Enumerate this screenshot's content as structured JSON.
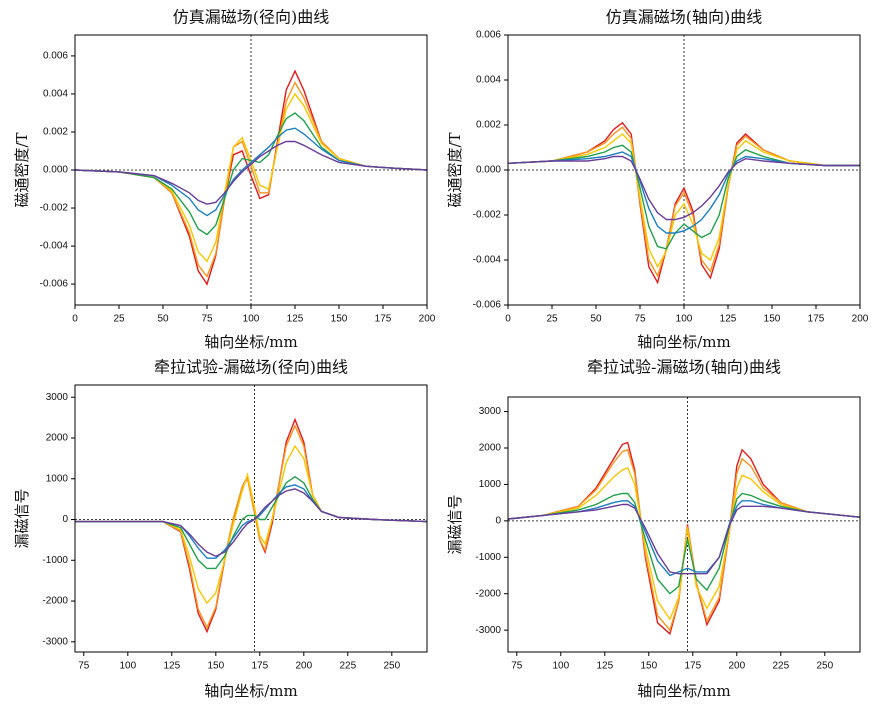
{
  "chart_data": [
    {
      "type": "line",
      "title": "仿真漏磁场(径向)曲线",
      "xlabel": "轴向坐标/mm",
      "ylabel": "磁通密度/T",
      "xlim": [
        0,
        200
      ],
      "xticks": [
        0,
        25,
        50,
        75,
        100,
        125,
        150,
        175,
        200
      ],
      "ylim": [
        -0.0071,
        0.0071
      ],
      "yticks": [
        -0.006,
        -0.004,
        -0.002,
        {
          "value": 0,
          "label": "0.000"
        },
        0.002,
        0.004,
        0.006
      ],
      "vline": 100,
      "hline": 0,
      "x": [
        0,
        25,
        45,
        55,
        65,
        70,
        75,
        80,
        85,
        90,
        95,
        100,
        105,
        110,
        115,
        120,
        125,
        130,
        140,
        150,
        165,
        180,
        200
      ],
      "series": [
        {
          "color": "#e31a1c",
          "values": [
            0,
            -0.0001,
            -0.0004,
            -0.0012,
            -0.0035,
            -0.0053,
            -0.006,
            -0.0045,
            -0.0015,
            0.0008,
            0.001,
            -0.0003,
            -0.0015,
            -0.0013,
            0.0015,
            0.0042,
            0.0052,
            0.0042,
            0.0015,
            0.0006,
            0.0002,
            0.0001,
            0
          ]
        },
        {
          "color": "#f7941d",
          "values": [
            0,
            -0.0001,
            -0.0004,
            -0.0012,
            -0.0033,
            -0.005,
            -0.0056,
            -0.0044,
            -0.0015,
            0.0012,
            0.0015,
            0.0002,
            -0.0012,
            -0.0012,
            0.0013,
            0.0036,
            0.0046,
            0.0038,
            0.0015,
            0.0006,
            0.0002,
            0.0001,
            0
          ]
        },
        {
          "color": "#f6c700",
          "values": [
            0,
            -0.0001,
            -0.0004,
            -0.0011,
            -0.0029,
            -0.0043,
            -0.0048,
            -0.0038,
            -0.0012,
            0.0012,
            0.0017,
            0.0005,
            -0.0008,
            -0.001,
            0.0012,
            0.0032,
            0.004,
            0.0034,
            0.0014,
            0.0006,
            0.0002,
            0.0001,
            0
          ]
        },
        {
          "color": "#22a04b",
          "values": [
            0,
            -0.0001,
            -0.0004,
            -0.001,
            -0.0022,
            -0.0031,
            -0.0034,
            -0.0029,
            -0.0015,
            0,
            0.0006,
            0.0005,
            0.0004,
            0.0008,
            0.0018,
            0.0027,
            0.003,
            0.0026,
            0.0012,
            0.0005,
            0.0002,
            0.0001,
            0
          ]
        },
        {
          "color": "#1c7fc0",
          "values": [
            0,
            -0.0001,
            -0.0003,
            -0.0008,
            -0.0015,
            -0.0021,
            -0.0024,
            -0.0021,
            -0.0013,
            -0.0005,
            0,
            0.0004,
            0.0008,
            0.0012,
            0.0017,
            0.0021,
            0.0022,
            0.0019,
            0.0011,
            0.0005,
            0.0002,
            0.0001,
            0
          ]
        },
        {
          "color": "#6a3d9a",
          "values": [
            0,
            -0.0001,
            -0.0003,
            -0.0007,
            -0.0012,
            -0.0016,
            -0.0018,
            -0.0017,
            -0.0012,
            -0.0006,
            -0.0001,
            0.0003,
            0.0007,
            0.001,
            0.0013,
            0.0015,
            0.0015,
            0.0013,
            0.0008,
            0.0004,
            0.0002,
            0.0001,
            0
          ]
        }
      ]
    },
    {
      "type": "line",
      "title": "仿真漏磁场(轴向)曲线",
      "xlabel": "轴向坐标/mm",
      "ylabel": "磁通密度/T",
      "xlim": [
        0,
        200
      ],
      "xticks": [
        0,
        25,
        50,
        75,
        100,
        125,
        150,
        175,
        200
      ],
      "ylim": [
        -0.006,
        0.006
      ],
      "yticks": [
        -0.006,
        -0.004,
        -0.002,
        {
          "value": 0,
          "label": "0.000"
        },
        0.002,
        0.004,
        0.006
      ],
      "vline": 100,
      "hline": 0,
      "x": [
        0,
        25,
        45,
        55,
        60,
        65,
        70,
        75,
        80,
        85,
        90,
        95,
        100,
        105,
        110,
        115,
        120,
        125,
        130,
        135,
        145,
        160,
        180,
        200
      ],
      "series": [
        {
          "color": "#e31a1c",
          "values": [
            0.0003,
            0.0004,
            0.0008,
            0.0013,
            0.0018,
            0.0021,
            0.0016,
            -0.0015,
            -0.0043,
            -0.005,
            -0.0035,
            -0.0015,
            -0.0008,
            -0.0018,
            -0.0042,
            -0.0048,
            -0.0035,
            -0.0008,
            0.0012,
            0.0016,
            0.0009,
            0.0004,
            0.0002,
            0.0002
          ]
        },
        {
          "color": "#f7941d",
          "values": [
            0.0003,
            0.0004,
            0.0008,
            0.0012,
            0.0016,
            0.0019,
            0.0014,
            -0.0014,
            -0.004,
            -0.0047,
            -0.0035,
            -0.0016,
            -0.001,
            -0.002,
            -0.004,
            -0.0045,
            -0.0033,
            -0.0008,
            0.0011,
            0.0015,
            0.0009,
            0.0004,
            0.0002,
            0.0002
          ]
        },
        {
          "color": "#f6c700",
          "values": [
            0.0003,
            0.0004,
            0.0007,
            0.001,
            0.0013,
            0.0016,
            0.0012,
            -0.0012,
            -0.0035,
            -0.0043,
            -0.0036,
            -0.002,
            -0.0015,
            -0.0024,
            -0.0037,
            -0.004,
            -0.003,
            -0.0007,
            0.0009,
            0.0013,
            0.0008,
            0.0004,
            0.0002,
            0.0002
          ]
        },
        {
          "color": "#22a04b",
          "values": [
            0.0003,
            0.0004,
            0.0006,
            0.0008,
            0.001,
            0.0011,
            0.0008,
            -0.0008,
            -0.0025,
            -0.0034,
            -0.0035,
            -0.0028,
            -0.0024,
            -0.0027,
            -0.003,
            -0.0028,
            -0.002,
            -0.0004,
            0.0006,
            0.0009,
            0.0006,
            0.0003,
            0.0002,
            0.0002
          ]
        },
        {
          "color": "#1c7fc0",
          "values": [
            0.0003,
            0.0004,
            0.0005,
            0.0006,
            0.0007,
            0.0008,
            0.0006,
            -0.0005,
            -0.0017,
            -0.0025,
            -0.0028,
            -0.0028,
            -0.0027,
            -0.0025,
            -0.0022,
            -0.0017,
            -0.0011,
            -0.0002,
            0.0004,
            0.0006,
            0.0005,
            0.0003,
            0.0002,
            0.0002
          ]
        },
        {
          "color": "#6a3d9a",
          "values": [
            0.0003,
            0.0004,
            0.0004,
            0.0005,
            0.0006,
            0.0006,
            0.0004,
            -0.0004,
            -0.0013,
            -0.0019,
            -0.0022,
            -0.0022,
            -0.0021,
            -0.0019,
            -0.0016,
            -0.0012,
            -0.0007,
            -0.0001,
            0.0003,
            0.0005,
            0.0004,
            0.0003,
            0.0002,
            0.0002
          ]
        }
      ]
    },
    {
      "type": "line",
      "title": "牵拉试验-漏磁场(径向)曲线",
      "xlabel": "轴向坐标/mm",
      "ylabel": "漏磁信号",
      "xlim": [
        70,
        270
      ],
      "xticks": [
        75,
        100,
        125,
        150,
        175,
        200,
        225,
        250
      ],
      "ylim": [
        -3250,
        3300
      ],
      "yticks": [
        -3000,
        -2000,
        -1000,
        0,
        1000,
        2000,
        3000
      ],
      "vline": 172,
      "hline": 0,
      "x": [
        70,
        100,
        120,
        130,
        135,
        140,
        145,
        150,
        155,
        160,
        165,
        168,
        172,
        175,
        178,
        182,
        186,
        190,
        195,
        200,
        205,
        210,
        220,
        240,
        270
      ],
      "series": [
        {
          "color": "#e31a1c",
          "values": [
            -50,
            -50,
            -50,
            -300,
            -1200,
            -2300,
            -2750,
            -2200,
            -1000,
            0,
            800,
            1050,
            200,
            -500,
            -800,
            -100,
            900,
            1900,
            2450,
            1900,
            600,
            200,
            50,
            0,
            -50
          ]
        },
        {
          "color": "#f7941d",
          "values": [
            -50,
            -50,
            -50,
            -280,
            -1100,
            -2200,
            -2650,
            -2150,
            -950,
            50,
            800,
            1000,
            150,
            -500,
            -750,
            0,
            900,
            1800,
            2300,
            1800,
            600,
            200,
            50,
            0,
            -50
          ]
        },
        {
          "color": "#f6c700",
          "values": [
            -50,
            -50,
            -50,
            -250,
            -900,
            -1700,
            -2050,
            -1800,
            -1000,
            -100,
            700,
            1100,
            300,
            -400,
            -600,
            0,
            700,
            1400,
            1800,
            1500,
            600,
            200,
            50,
            0,
            -50
          ]
        },
        {
          "color": "#22a04b",
          "values": [
            -50,
            -50,
            -50,
            -200,
            -600,
            -1000,
            -1200,
            -1200,
            -900,
            -400,
            0,
            100,
            100,
            0,
            0,
            300,
            600,
            900,
            1050,
            900,
            500,
            200,
            50,
            0,
            -50
          ]
        },
        {
          "color": "#1c7fc0",
          "values": [
            -50,
            -50,
            -50,
            -150,
            -400,
            -700,
            -950,
            -950,
            -750,
            -450,
            -150,
            -50,
            0,
            100,
            250,
            450,
            650,
            800,
            850,
            750,
            450,
            200,
            50,
            0,
            -50
          ]
        },
        {
          "color": "#6a3d9a",
          "values": [
            -50,
            -50,
            -50,
            -150,
            -350,
            -600,
            -800,
            -900,
            -800,
            -550,
            -250,
            -100,
            0,
            150,
            300,
            450,
            600,
            700,
            750,
            650,
            450,
            200,
            50,
            0,
            -50
          ]
        }
      ]
    },
    {
      "type": "line",
      "title": "牵拉试验-漏磁场(轴向)曲线",
      "xlabel": "轴向坐标/mm",
      "ylabel": "漏磁信号",
      "xlim": [
        70,
        270
      ],
      "xticks": [
        75,
        100,
        125,
        150,
        175,
        200,
        225,
        250
      ],
      "ylim": [
        -3600,
        3400
      ],
      "yticks": [
        -3000,
        -2000,
        -1000,
        0,
        1000,
        2000,
        3000
      ],
      "vline": 172,
      "hline": 0,
      "x": [
        70,
        90,
        110,
        120,
        130,
        135,
        138,
        142,
        148,
        155,
        162,
        167,
        172,
        177,
        183,
        190,
        196,
        200,
        203,
        208,
        215,
        225,
        240,
        270
      ],
      "series": [
        {
          "color": "#e31a1c",
          "values": [
            50,
            150,
            400,
            900,
            1700,
            2100,
            2150,
            1400,
            -1000,
            -2800,
            -3100,
            -2200,
            -100,
            -1700,
            -2850,
            -2200,
            -200,
            1500,
            1950,
            1700,
            1000,
            500,
            250,
            100
          ]
        },
        {
          "color": "#f7941d",
          "values": [
            50,
            150,
            400,
            850,
            1600,
            1900,
            1950,
            1300,
            -900,
            -2600,
            -3000,
            -2200,
            -150,
            -1700,
            -2750,
            -2100,
            -200,
            1300,
            1700,
            1500,
            900,
            500,
            250,
            100
          ]
        },
        {
          "color": "#f6c700",
          "values": [
            50,
            150,
            350,
            700,
            1200,
            1400,
            1450,
            1000,
            -700,
            -2200,
            -2700,
            -2100,
            -200,
            -1800,
            -2400,
            -1800,
            -200,
            900,
            1250,
            1150,
            800,
            450,
            250,
            100
          ]
        },
        {
          "color": "#22a04b",
          "values": [
            50,
            150,
            300,
            450,
            700,
            750,
            750,
            500,
            -500,
            -1600,
            -2000,
            -1800,
            -500,
            -1600,
            -1900,
            -1300,
            -100,
            600,
            750,
            700,
            550,
            400,
            250,
            100
          ]
        },
        {
          "color": "#1c7fc0",
          "values": [
            50,
            150,
            250,
            350,
            500,
            550,
            550,
            400,
            -300,
            -1100,
            -1500,
            -1400,
            -1300,
            -1400,
            -1400,
            -1000,
            -50,
            400,
            550,
            550,
            450,
            350,
            250,
            100
          ]
        },
        {
          "color": "#6a3d9a",
          "values": [
            50,
            150,
            250,
            300,
            400,
            450,
            450,
            350,
            -200,
            -900,
            -1400,
            -1450,
            -1450,
            -1450,
            -1450,
            -1000,
            -100,
            300,
            400,
            400,
            400,
            350,
            250,
            100
          ]
        }
      ]
    }
  ]
}
